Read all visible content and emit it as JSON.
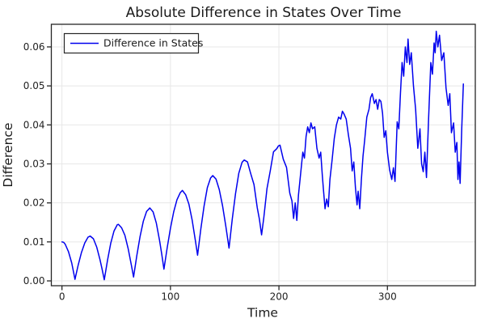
{
  "title": "Absolute Difference in States Over Time",
  "legend": {
    "label": "Difference in States"
  },
  "axes": {
    "x_label": "Time",
    "y_label": "Difference"
  },
  "colors": {
    "line": "#0000EE",
    "grid": "#E7E7E7",
    "frame": "#262626",
    "tick": "#262626",
    "text": "#1a1a1a",
    "background": "#ffffff"
  },
  "chart_data": {
    "type": "line",
    "title": "Absolute Difference in States Over Time",
    "xlabel": "Time",
    "ylabel": "Difference",
    "xlim": [
      -9.8,
      381
    ],
    "ylim": [
      -0.00124,
      0.0658
    ],
    "x_ticks": [
      0,
      100,
      200,
      300
    ],
    "x_tick_labels": [
      "0",
      "100",
      "200",
      "300"
    ],
    "y_ticks": [
      0,
      0.01,
      0.02,
      0.03,
      0.04,
      0.05,
      0.06
    ],
    "y_tick_labels": [
      "0.00",
      "0.01",
      "0.02",
      "0.03",
      "0.04",
      "0.05",
      "0.06"
    ],
    "grid": true,
    "legend_position": "top-left",
    "series": [
      {
        "name": "Difference in States",
        "color": "#0000EE",
        "points": [
          [
            0,
            0.01
          ],
          [
            1.5,
            0.0099
          ],
          [
            3,
            0.0094
          ],
          [
            6,
            0.0075
          ],
          [
            9,
            0.0046
          ],
          [
            12,
            0.0004
          ],
          [
            15,
            0.0041
          ],
          [
            18,
            0.0073
          ],
          [
            21,
            0.0097
          ],
          [
            24,
            0.0112
          ],
          [
            26,
            0.0115
          ],
          [
            29,
            0.0108
          ],
          [
            32,
            0.0087
          ],
          [
            35,
            0.0055
          ],
          [
            37,
            0.003
          ],
          [
            39,
            0.0003
          ],
          [
            42,
            0.0053
          ],
          [
            45,
            0.0097
          ],
          [
            48,
            0.0128
          ],
          [
            51,
            0.0144
          ],
          [
            52,
            0.0145
          ],
          [
            55,
            0.0136
          ],
          [
            58,
            0.0117
          ],
          [
            61,
            0.0083
          ],
          [
            64,
            0.004
          ],
          [
            66,
            0.001
          ],
          [
            69,
            0.0065
          ],
          [
            72,
            0.0114
          ],
          [
            75,
            0.0153
          ],
          [
            78,
            0.0178
          ],
          [
            81,
            0.0187
          ],
          [
            84,
            0.0177
          ],
          [
            87,
            0.0148
          ],
          [
            90,
            0.0103
          ],
          [
            92,
            0.0068
          ],
          [
            94,
            0.003
          ],
          [
            97,
            0.0085
          ],
          [
            100,
            0.0135
          ],
          [
            103,
            0.0177
          ],
          [
            106,
            0.0208
          ],
          [
            109,
            0.0226
          ],
          [
            111,
            0.0232
          ],
          [
            114,
            0.0221
          ],
          [
            117,
            0.0197
          ],
          [
            120,
            0.0156
          ],
          [
            123,
            0.0103
          ],
          [
            125,
            0.0066
          ],
          [
            128,
            0.0133
          ],
          [
            131,
            0.0192
          ],
          [
            134,
            0.0239
          ],
          [
            137,
            0.0264
          ],
          [
            139,
            0.027
          ],
          [
            142,
            0.0261
          ],
          [
            145,
            0.0234
          ],
          [
            148,
            0.0193
          ],
          [
            151,
            0.0141
          ],
          [
            154,
            0.0084
          ],
          [
            157,
            0.0159
          ],
          [
            160,
            0.0224
          ],
          [
            163,
            0.0276
          ],
          [
            166,
            0.0304
          ],
          [
            168,
            0.031
          ],
          [
            171,
            0.0305
          ],
          [
            174,
            0.0275
          ],
          [
            177,
            0.0247
          ],
          [
            180,
            0.0188
          ],
          [
            182,
            0.0158
          ],
          [
            184,
            0.0118
          ],
          [
            186,
            0.0161
          ],
          [
            189,
            0.0237
          ],
          [
            192,
            0.0282
          ],
          [
            195,
            0.0331
          ],
          [
            198,
            0.0339
          ],
          [
            199.5,
            0.0346
          ],
          [
            201,
            0.0348
          ],
          [
            202.5,
            0.033
          ],
          [
            204,
            0.0312
          ],
          [
            207,
            0.0291
          ],
          [
            210,
            0.0225
          ],
          [
            212,
            0.0205
          ],
          [
            213.5,
            0.016
          ],
          [
            215,
            0.02
          ],
          [
            216.5,
            0.0155
          ],
          [
            218,
            0.022
          ],
          [
            220,
            0.0275
          ],
          [
            222,
            0.033
          ],
          [
            223.5,
            0.0315
          ],
          [
            225,
            0.037
          ],
          [
            226.5,
            0.0395
          ],
          [
            228,
            0.038
          ],
          [
            229.5,
            0.0405
          ],
          [
            231,
            0.039
          ],
          [
            233,
            0.0395
          ],
          [
            235,
            0.034
          ],
          [
            237,
            0.0315
          ],
          [
            238.5,
            0.033
          ],
          [
            240,
            0.027
          ],
          [
            241,
            0.0235
          ],
          [
            242.5,
            0.0185
          ],
          [
            244,
            0.021
          ],
          [
            245.5,
            0.019
          ],
          [
            247,
            0.026
          ],
          [
            249,
            0.031
          ],
          [
            251,
            0.0365
          ],
          [
            253,
            0.04
          ],
          [
            255,
            0.042
          ],
          [
            257,
            0.0415
          ],
          [
            258.5,
            0.0435
          ],
          [
            260,
            0.0428
          ],
          [
            262,
            0.0415
          ],
          [
            264,
            0.0375
          ],
          [
            266,
            0.034
          ],
          [
            267.5,
            0.0282
          ],
          [
            269,
            0.0305
          ],
          [
            270.5,
            0.024
          ],
          [
            272,
            0.0195
          ],
          [
            273,
            0.023
          ],
          [
            274.5,
            0.0185
          ],
          [
            276,
            0.026
          ],
          [
            277.5,
            0.032
          ],
          [
            279,
            0.036
          ],
          [
            281,
            0.042
          ],
          [
            283,
            0.044
          ],
          [
            284.5,
            0.047
          ],
          [
            286,
            0.048
          ],
          [
            288,
            0.0455
          ],
          [
            289.5,
            0.0465
          ],
          [
            291,
            0.044
          ],
          [
            292.5,
            0.0465
          ],
          [
            294,
            0.046
          ],
          [
            295.5,
            0.043
          ],
          [
            297,
            0.0368
          ],
          [
            298.5,
            0.0385
          ],
          [
            300,
            0.033
          ],
          [
            302,
            0.0285
          ],
          [
            304,
            0.026
          ],
          [
            305.5,
            0.029
          ],
          [
            307,
            0.0255
          ],
          [
            309,
            0.0408
          ],
          [
            310.5,
            0.039
          ],
          [
            312,
            0.048
          ],
          [
            313.5,
            0.056
          ],
          [
            315,
            0.0525
          ],
          [
            316.5,
            0.06
          ],
          [
            318,
            0.056
          ],
          [
            319,
            0.062
          ],
          [
            320.5,
            0.0555
          ],
          [
            322,
            0.0585
          ],
          [
            324,
            0.05
          ],
          [
            326,
            0.044
          ],
          [
            328,
            0.034
          ],
          [
            330,
            0.039
          ],
          [
            331.5,
            0.03
          ],
          [
            333,
            0.028
          ],
          [
            334.5,
            0.033
          ],
          [
            336,
            0.0265
          ],
          [
            338,
            0.042
          ],
          [
            340,
            0.056
          ],
          [
            341.5,
            0.053
          ],
          [
            343,
            0.061
          ],
          [
            344,
            0.0585
          ],
          [
            345,
            0.064
          ],
          [
            346.5,
            0.06
          ],
          [
            348,
            0.063
          ],
          [
            350,
            0.0565
          ],
          [
            352,
            0.0585
          ],
          [
            354,
            0.0495
          ],
          [
            356,
            0.045
          ],
          [
            357.5,
            0.048
          ],
          [
            359,
            0.038
          ],
          [
            361,
            0.0405
          ],
          [
            362.5,
            0.033
          ],
          [
            364,
            0.0355
          ],
          [
            365,
            0.026
          ],
          [
            366,
            0.0305
          ],
          [
            367,
            0.025
          ],
          [
            368.5,
            0.039
          ],
          [
            370,
            0.0505
          ]
        ]
      }
    ]
  }
}
